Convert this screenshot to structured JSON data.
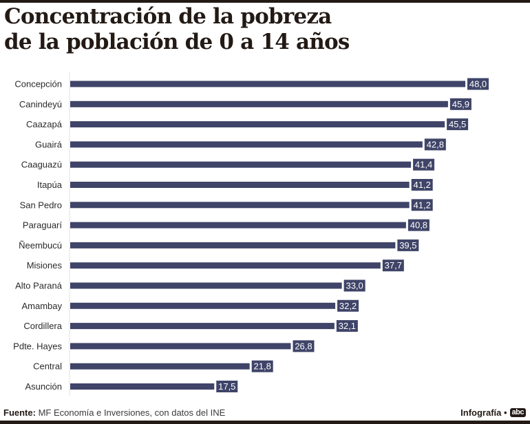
{
  "header": {
    "title_line1": "Concentración de la pobreza",
    "title_line2": "de la población de 0 a 14 años"
  },
  "chart_data": {
    "type": "bar",
    "orientation": "horizontal",
    "title": "Concentración de la pobreza de la población de 0 a 14 años",
    "xlabel": "",
    "ylabel": "",
    "xlim": [
      0,
      48
    ],
    "grid": false,
    "bar_color": "#3f4468",
    "label_color": "#ffffff",
    "categories": [
      "Concepción",
      "Canindeyú",
      "Caazapá",
      "Guairá",
      "Caaguazú",
      "Itapúa",
      "San Pedro",
      "Paraguarí",
      "Ñeembucú",
      "Misiones",
      "Alto Paraná",
      "Amambay",
      "Cordillera",
      "Pdte. Hayes",
      "Central",
      "Asunción"
    ],
    "values": [
      48.0,
      45.9,
      45.5,
      42.8,
      41.4,
      41.2,
      41.2,
      40.8,
      39.5,
      37.7,
      33.0,
      32.2,
      32.1,
      26.8,
      21.8,
      17.5
    ],
    "value_labels": [
      "48,0",
      "45,9",
      "45,5",
      "42,8",
      "41,4",
      "41,2",
      "41,2",
      "40,8",
      "39,5",
      "37,7",
      "33,0",
      "32,2",
      "32,1",
      "26,8",
      "21,8",
      "17,5"
    ]
  },
  "footer": {
    "source_label": "Fuente:",
    "source_text": "MF Economía e Inversiones, con datos del INE",
    "credit": "Infografía •",
    "logo": "abc"
  }
}
